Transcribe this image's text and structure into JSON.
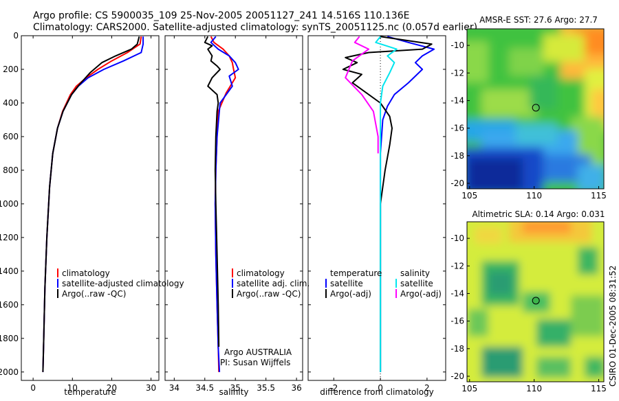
{
  "header": {
    "title_line1": "Argo profile: CS 5900035_109 25-Nov-2005 20051127_241 14.516S 110.136E",
    "title_line2": "Climatology: CARS2000. Satellite-adjusted climatology: synTS_20051125.nc (0.057d earlier)"
  },
  "colors": {
    "climatology": "#ff0000",
    "satellite": "#0000ff",
    "argo": "#000000",
    "satellite_salinity": "#00e5ee",
    "argo_salinity_adj": "#ff00ff"
  },
  "chart_data": [
    {
      "id": "temperature",
      "type": "line",
      "xlabel": "temperature",
      "ylabel": "",
      "xlim": [
        -3,
        32
      ],
      "ylim": [
        2050,
        0
      ],
      "xticks": [
        0,
        10,
        20,
        30
      ],
      "xtick_labels": [
        "0",
        "10",
        "20",
        "30"
      ],
      "yticks": [
        0,
        200,
        400,
        600,
        800,
        1000,
        1200,
        1400,
        1600,
        1800,
        2000
      ],
      "ytick_labels": [
        "0",
        "200",
        "400",
        "600",
        "800",
        "1000",
        "1200",
        "1400",
        "1600",
        "1800",
        "2000"
      ],
      "legend": [
        "climatology",
        "satellite-adjusted climatology",
        "Argo(..raw -QC)"
      ],
      "series": [
        {
          "name": "climatology",
          "color": "#ff0000",
          "x": [
            27.5,
            27.2,
            24.0,
            20.0,
            16.5,
            13.5,
            11.0,
            9.5,
            7.5,
            6.2,
            5.0,
            4.2,
            3.5,
            3.0,
            2.7,
            2.5
          ],
          "y": [
            5,
            50,
            100,
            150,
            200,
            250,
            300,
            350,
            450,
            550,
            700,
            900,
            1200,
            1500,
            1800,
            2000
          ]
        },
        {
          "name": "satellite-adjusted climatology",
          "color": "#0000ff",
          "x": [
            28.0,
            28.0,
            27.5,
            23.0,
            18.0,
            14.0,
            11.5,
            9.8,
            7.6,
            6.2,
            5.0,
            4.2,
            3.5,
            3.0,
            2.7,
            2.5
          ],
          "y": [
            5,
            50,
            100,
            150,
            200,
            250,
            300,
            350,
            450,
            550,
            700,
            900,
            1200,
            1500,
            1800,
            2000
          ]
        },
        {
          "name": "Argo(..raw -QC)",
          "color": "#000000",
          "x": [
            27.0,
            26.5,
            25.0,
            21.0,
            17.5,
            14.5,
            11.8,
            9.8,
            7.6,
            6.2,
            5.0,
            4.2,
            3.5,
            3.0,
            2.7,
            2.5
          ],
          "y": [
            5,
            50,
            80,
            120,
            160,
            220,
            290,
            350,
            450,
            550,
            700,
            900,
            1200,
            1500,
            1800,
            2000
          ]
        }
      ]
    },
    {
      "id": "salinity",
      "type": "line",
      "xlabel": "salinity",
      "ylabel": "",
      "xlim": [
        33.85,
        36.1
      ],
      "ylim": [
        2050,
        0
      ],
      "xticks": [
        34,
        34.5,
        35,
        35.5,
        36
      ],
      "xtick_labels": [
        "34",
        "34.5",
        "35",
        "35.5",
        "36"
      ],
      "legend": [
        "climatology",
        "satellite adj. clim.",
        "Argo(..raw -QC)"
      ],
      "series": [
        {
          "name": "climatology",
          "color": "#ff0000",
          "x": [
            34.6,
            34.65,
            34.8,
            34.9,
            34.95,
            34.97,
            35.0,
            34.85,
            34.72,
            34.7,
            34.68,
            34.67,
            34.68,
            34.7,
            34.72,
            34.73
          ],
          "y": [
            5,
            40,
            80,
            120,
            160,
            200,
            250,
            340,
            450,
            600,
            800,
            1000,
            1300,
            1600,
            1850,
            2000
          ]
        },
        {
          "name": "satellite adj. clim.",
          "color": "#0000ff",
          "x": [
            34.68,
            34.6,
            34.72,
            34.9,
            35.0,
            35.05,
            34.9,
            34.95,
            34.75,
            34.7,
            34.68,
            34.67,
            34.68,
            34.7,
            34.72,
            34.74
          ],
          "y": [
            5,
            40,
            80,
            120,
            160,
            200,
            240,
            300,
            400,
            600,
            800,
            1000,
            1300,
            1600,
            1850,
            2000
          ]
        },
        {
          "name": "Argo(..raw -QC)",
          "color": "#000000",
          "x": [
            34.55,
            34.5,
            34.62,
            34.55,
            34.62,
            34.6,
            34.7,
            34.75,
            34.62,
            34.55,
            34.7,
            34.72,
            34.7,
            34.68,
            34.67,
            34.68,
            34.7,
            34.72,
            34.73
          ],
          "y": [
            5,
            40,
            60,
            80,
            120,
            150,
            180,
            200,
            250,
            300,
            350,
            400,
            450,
            600,
            800,
            1000,
            1300,
            1600,
            1850
          ]
        }
      ],
      "annotations": [
        "Argo AUSTRALIA",
        "PI: Susan Wijffels"
      ]
    },
    {
      "id": "difference",
      "type": "line",
      "xlabel": "difference from climatology",
      "ylabel": "",
      "xlim": [
        -3.1,
        2.8
      ],
      "ylim": [
        2050,
        0
      ],
      "xticks": [
        -2,
        0,
        2
      ],
      "xtick_labels": [
        "-2",
        "0",
        "2"
      ],
      "legend_headers": [
        "temperature",
        "salinity"
      ],
      "legend": [
        "satellite",
        "Argo(-adj)",
        "satellite",
        "Argo(-adj)"
      ],
      "series": [
        {
          "name": "temperature satellite",
          "color": "#0000ff",
          "x": [
            0.3,
            1.2,
            2.3,
            1.8,
            1.5,
            1.8,
            1.2,
            0.6,
            0.3,
            0.1,
            0.0,
            0.0,
            0.0
          ],
          "y": [
            5,
            40,
            80,
            120,
            160,
            200,
            280,
            350,
            420,
            500,
            700,
            1000,
            2000
          ]
        },
        {
          "name": "temperature Argo(-adj)",
          "color": "#000000",
          "x": [
            0.0,
            2.2,
            1.8,
            -0.5,
            -1.5,
            -1.0,
            -1.6,
            -0.8,
            -1.2,
            -0.5,
            0.0,
            0.4,
            0.5,
            0.4,
            0.2,
            0.0,
            0.0
          ],
          "y": [
            5,
            50,
            80,
            100,
            130,
            160,
            200,
            230,
            280,
            350,
            400,
            480,
            550,
            650,
            800,
            1000,
            2000
          ]
        },
        {
          "name": "salinity satellite",
          "color": "#00e5ee",
          "x": [
            0.0,
            -0.2,
            0.7,
            0.3,
            0.6,
            0.4,
            0.1,
            0.0,
            0.0
          ],
          "y": [
            5,
            40,
            80,
            120,
            160,
            220,
            300,
            400,
            2000
          ]
        },
        {
          "name": "salinity Argo(-adj)",
          "color": "#ff00ff",
          "x": [
            -0.9,
            -1.1,
            -0.5,
            -1.2,
            -1.5,
            -0.8,
            -0.3,
            -0.1,
            -0.1
          ],
          "y": [
            5,
            40,
            80,
            150,
            250,
            350,
            450,
            600,
            700
          ]
        }
      ]
    }
  ],
  "maps": [
    {
      "id": "sst",
      "title": "AMSR-E SST: 27.6 Argo: 27.7",
      "xticks": [
        105,
        110,
        115
      ],
      "xtick_labels": [
        "105",
        "110",
        "115"
      ],
      "yticks": [
        -10,
        -12,
        -14,
        -16,
        -18,
        -20
      ],
      "ytick_labels": [
        "-10",
        "-12",
        "-14",
        "-16",
        "-18",
        "-20"
      ],
      "xlim": [
        104.8,
        115.4
      ],
      "ylim": [
        -20.4,
        -8.8
      ],
      "marker": {
        "lon": 110.136,
        "lat": -14.516
      }
    },
    {
      "id": "sla",
      "title": "Altimetric SLA: 0.14 Argo: 0.031",
      "xticks": [
        105,
        110,
        115
      ],
      "xtick_labels": [
        "105",
        "110",
        "115"
      ],
      "yticks": [
        -10,
        -12,
        -14,
        -16,
        -18,
        -20
      ],
      "ytick_labels": [
        "-10",
        "-12",
        "-14",
        "-16",
        "-18",
        "-20"
      ],
      "xlim": [
        104.8,
        115.4
      ],
      "ylim": [
        -20.4,
        -8.8
      ],
      "marker": {
        "lon": 110.136,
        "lat": -14.516
      }
    }
  ],
  "footer": {
    "side_label": "CSIRO 01-Dec-2005 08:31:52"
  }
}
